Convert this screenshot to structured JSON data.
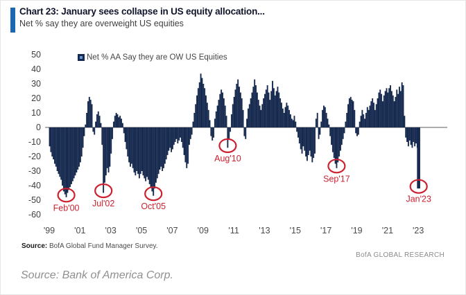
{
  "header": {
    "title": "Chart 23: January sees collapse in US equity allocation...",
    "subtitle": "Net % say they are overweight US equities",
    "accent_color": "#1a68b4"
  },
  "legend": {
    "label": "Net % AA Say they are OW US Equities"
  },
  "chart_data": {
    "type": "bar",
    "title": "Net % AA Say they are OW US Equities",
    "frequency": "monthly",
    "start": "Jan 1999",
    "end": "Jan 2023",
    "bar_color": "#16294e",
    "zero_line_color": "#8a8a8a",
    "annotation_color": "#cc2130",
    "ylim": [
      -60,
      50
    ],
    "grid": false,
    "legend_position": "top",
    "y_ticks": [
      50,
      40,
      30,
      20,
      10,
      0,
      -10,
      -20,
      -30,
      -40,
      -50,
      -60
    ],
    "x_ticks": [
      "'99",
      "'01",
      "'03",
      "'05",
      "'07",
      "'09",
      "'11",
      "'13",
      "'15",
      "'17",
      "'19",
      "'21",
      "'23"
    ],
    "values": [
      -13,
      -17,
      -20,
      -22,
      -25,
      -27,
      -30,
      -32,
      -34,
      -36,
      -40,
      -44,
      -46,
      -48,
      -45,
      -43,
      -41,
      -39,
      -37,
      -35,
      -33,
      -31,
      -29,
      -27,
      -24,
      -20,
      -14,
      -6,
      2,
      10,
      18,
      21,
      19,
      16,
      -3,
      -5,
      4,
      9,
      11,
      8,
      3,
      -12,
      -45,
      -38,
      -33,
      -28,
      -31,
      -27,
      -18,
      -8,
      4,
      8,
      10,
      9,
      7,
      8,
      6,
      3,
      -4,
      -10,
      -15,
      -20,
      -24,
      -27,
      -25,
      -28,
      -31,
      -33,
      -30,
      -32,
      -35,
      -32,
      -30,
      -33,
      -35,
      -37,
      -34,
      -36,
      -39,
      -41,
      -44,
      -47,
      -42,
      -38,
      -35,
      -32,
      -29,
      -27,
      -30,
      -28,
      -25,
      -22,
      -19,
      -16,
      -14,
      -17,
      -15,
      -12,
      -10,
      -8,
      -11,
      -9,
      -7,
      -10,
      -14,
      -19,
      -24,
      -28,
      -25,
      -12,
      -8,
      -5,
      4,
      10,
      16,
      22,
      27,
      31,
      37,
      34,
      30,
      27,
      22,
      17,
      12,
      5,
      -6,
      -9,
      -7,
      6,
      11,
      15,
      19,
      23,
      26,
      24,
      20,
      15,
      8,
      -14,
      -8,
      -3,
      9,
      16,
      21,
      26,
      30,
      33,
      28,
      24,
      20,
      12,
      -6,
      -8,
      6,
      13,
      16,
      20,
      24,
      28,
      33,
      29,
      24,
      19,
      15,
      12,
      16,
      20,
      23,
      26,
      29,
      24,
      19,
      25,
      32,
      27,
      22,
      25,
      28,
      24,
      20,
      17,
      13,
      10,
      14,
      17,
      15,
      12,
      9,
      6,
      5,
      8,
      4,
      -3,
      -7,
      -11,
      -15,
      -18,
      -13,
      -16,
      -20,
      -23,
      -19,
      -16,
      -20,
      -24,
      -21,
      -18,
      6,
      10,
      -8,
      -5,
      4,
      12,
      15,
      14,
      10,
      6,
      2,
      -6,
      -12,
      -17,
      -21,
      -25,
      -28,
      -24,
      -20,
      -16,
      -12,
      -8,
      -4,
      4,
      10,
      16,
      20,
      21,
      19,
      18,
      12,
      -4,
      -6,
      -5,
      4,
      8,
      12,
      9,
      6,
      10,
      14,
      12,
      15,
      18,
      20,
      17,
      12,
      16,
      20,
      24,
      26,
      23,
      18,
      22,
      25,
      27,
      24,
      27,
      29,
      25,
      22,
      18,
      21,
      26,
      23,
      28,
      25,
      31,
      29,
      8,
      -7,
      -10,
      -13,
      -9,
      -12,
      -14,
      -10,
      -13,
      -11,
      -14,
      -42
    ],
    "annotations": [
      {
        "label": "Feb'00",
        "month_index": 13,
        "value": -48
      },
      {
        "label": "Jul'02",
        "month_index": 42,
        "value": -45
      },
      {
        "label": "Oct'05",
        "month_index": 81,
        "value": -47
      },
      {
        "label": "Aug'10",
        "month_index": 139,
        "value": -14
      },
      {
        "label": "Sep'17",
        "month_index": 224,
        "value": -28
      },
      {
        "label": "Jan'23",
        "month_index": 288,
        "value": -42
      }
    ]
  },
  "footer": {
    "source_label": "Source:",
    "source_text": " BofA Global Fund Manager Survey.",
    "brand": "BofA GLOBAL RESEARCH"
  },
  "caption": "Source: Bank of America Corp."
}
